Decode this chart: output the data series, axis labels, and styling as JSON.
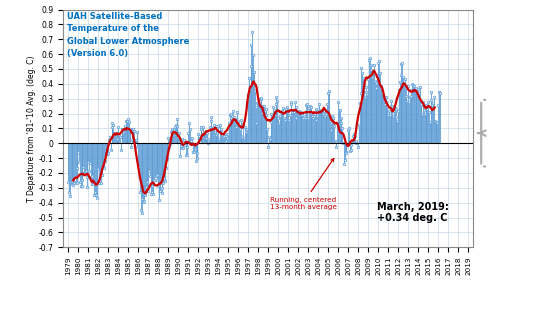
{
  "title_text": "UAH Satellite-Based\nTemperature of the\nGlobal Lower Atmosphere\n(Version 6.0)",
  "ylabel": "T Departure from '81-'10 Avg. (deg. C)",
  "ylim": [
    -0.7,
    0.9
  ],
  "yticks": [
    -0.7,
    -0.6,
    -0.5,
    -0.4,
    -0.3,
    -0.2,
    -0.1,
    0.0,
    0.1,
    0.2,
    0.3,
    0.4,
    0.5,
    0.6,
    0.7,
    0.8,
    0.9
  ],
  "annotation_text": "Running, centered\n13-month average",
  "march2019_text": "March, 2019:\n+0.34 deg. C",
  "line_color": "#cc0000",
  "bar_color": "#5b9bd5",
  "background_color": "#ffffff",
  "monthly_data": [
    -0.259,
    -0.325,
    -0.353,
    -0.264,
    -0.251,
    -0.274,
    -0.284,
    -0.267,
    -0.218,
    -0.261,
    -0.268,
    -0.168,
    -0.056,
    -0.128,
    -0.259,
    -0.289,
    -0.289,
    -0.246,
    -0.159,
    -0.199,
    -0.2,
    -0.189,
    -0.229,
    -0.293,
    -0.127,
    -0.189,
    -0.133,
    -0.228,
    -0.22,
    -0.276,
    -0.273,
    -0.346,
    -0.328,
    -0.349,
    -0.368,
    -0.263,
    -0.175,
    -0.267,
    -0.256,
    -0.268,
    -0.216,
    -0.166,
    -0.147,
    -0.166,
    -0.121,
    -0.054,
    -0.072,
    -0.023,
    -0.063,
    0.023,
    0.044,
    -0.044,
    0.137,
    0.108,
    0.12,
    0.068,
    0.056,
    0.036,
    0.026,
    0.07,
    0.107,
    0.057,
    0.042,
    -0.046,
    0.097,
    0.095,
    0.075,
    0.093,
    0.118,
    0.147,
    0.094,
    0.151,
    0.162,
    0.143,
    0.082,
    -0.022,
    0.093,
    0.023,
    0.099,
    0.082,
    0.019,
    0.023,
    -0.024,
    0.076,
    -0.133,
    -0.16,
    -0.327,
    -0.452,
    -0.469,
    -0.374,
    -0.395,
    -0.387,
    -0.351,
    -0.296,
    -0.312,
    -0.261,
    -0.32,
    -0.185,
    -0.223,
    -0.344,
    -0.33,
    -0.29,
    -0.34,
    -0.244,
    -0.218,
    -0.219,
    -0.215,
    -0.248,
    -0.285,
    -0.38,
    -0.319,
    -0.266,
    -0.338,
    -0.302,
    -0.265,
    -0.237,
    -0.256,
    -0.167,
    -0.098,
    -0.107,
    0.038,
    -0.025,
    -0.008,
    0.074,
    0.097,
    0.08,
    0.066,
    0.091,
    0.111,
    0.123,
    0.163,
    0.116,
    0.042,
    0.068,
    -0.088,
    -0.016,
    0.027,
    -0.032,
    -0.031,
    0.02,
    -0.013,
    -0.076,
    -0.077,
    -0.027,
    0.068,
    0.135,
    0.095,
    0.014,
    0.033,
    -0.002,
    -0.059,
    -0.059,
    -0.04,
    -0.12,
    -0.1,
    -0.069,
    0.065,
    0.048,
    0.007,
    0.112,
    0.097,
    0.041,
    0.107,
    0.071,
    0.065,
    0.033,
    0.081,
    0.07,
    0.003,
    0.029,
    0.109,
    0.179,
    0.151,
    0.1,
    0.097,
    0.123,
    0.076,
    0.119,
    0.058,
    0.069,
    0.113,
    0.028,
    0.125,
    0.097,
    0.075,
    0.039,
    0.042,
    0.046,
    0.062,
    0.046,
    0.017,
    0.033,
    0.062,
    0.133,
    0.189,
    0.196,
    0.167,
    0.142,
    0.214,
    0.174,
    0.162,
    0.108,
    0.135,
    0.211,
    0.153,
    0.114,
    0.099,
    0.157,
    0.049,
    0.042,
    0.128,
    0.038,
    0.111,
    0.086,
    0.075,
    0.094,
    0.299,
    0.44,
    0.362,
    0.517,
    0.66,
    0.747,
    0.597,
    0.482,
    0.354,
    0.246,
    0.138,
    0.268,
    0.273,
    0.298,
    0.249,
    0.295,
    0.303,
    0.204,
    0.249,
    0.254,
    0.218,
    0.232,
    0.191,
    0.094,
    -0.023,
    0.04,
    0.028,
    0.143,
    0.197,
    0.177,
    0.247,
    0.226,
    0.189,
    0.262,
    0.313,
    0.282,
    0.168,
    0.138,
    0.186,
    0.208,
    0.212,
    0.215,
    0.239,
    0.167,
    0.158,
    0.217,
    0.229,
    0.241,
    0.222,
    0.157,
    0.187,
    0.276,
    0.263,
    0.21,
    0.222,
    0.213,
    0.275,
    0.17,
    0.246,
    0.218,
    0.207,
    0.214,
    0.21,
    0.2,
    0.188,
    0.19,
    0.168,
    0.183,
    0.168,
    0.212,
    0.256,
    0.266,
    0.171,
    0.239,
    0.248,
    0.204,
    0.242,
    0.183,
    0.17,
    0.183,
    0.194,
    0.158,
    0.232,
    0.183,
    0.217,
    0.261,
    0.223,
    0.219,
    0.214,
    0.222,
    0.198,
    0.218,
    0.18,
    0.196,
    0.223,
    0.266,
    0.337,
    0.351,
    0.153,
    0.091,
    0.135,
    0.183,
    0.172,
    0.116,
    0.018,
    -0.022,
    0.011,
    0.138,
    0.28,
    0.224,
    0.222,
    0.169,
    0.138,
    0.103,
    -0.001,
    -0.14,
    -0.111,
    -0.062,
    -0.066,
    -0.013,
    0.092,
    0.1,
    -0.054,
    -0.046,
    -0.012,
    0.021,
    0.046,
    0.061,
    0.048,
    0.005,
    0.018,
    0.002,
    -0.026,
    0.126,
    0.272,
    0.339,
    0.509,
    0.473,
    0.436,
    0.396,
    0.312,
    0.347,
    0.38,
    0.332,
    0.433,
    0.558,
    0.573,
    0.49,
    0.525,
    0.449,
    0.478,
    0.529,
    0.418,
    0.408,
    0.37,
    0.458,
    0.541,
    0.556,
    0.475,
    0.386,
    0.369,
    0.337,
    0.325,
    0.286,
    0.262,
    0.277,
    0.311,
    0.247,
    0.188,
    0.215,
    0.187,
    0.286,
    0.254,
    0.251,
    0.182,
    0.218,
    0.235,
    0.233,
    0.179,
    0.147,
    0.219,
    0.359,
    0.415,
    0.462,
    0.534,
    0.541,
    0.445,
    0.407,
    0.432,
    0.373,
    0.321,
    0.285,
    0.386,
    0.277,
    0.313,
    0.321,
    0.358,
    0.396,
    0.394,
    0.383,
    0.349,
    0.374,
    0.349,
    0.34,
    0.368,
    0.34,
    0.376,
    0.258,
    0.267,
    0.197,
    0.275,
    0.222,
    0.199,
    0.247,
    0.258,
    0.23,
    0.276,
    0.209,
    0.143,
    0.294,
    0.343,
    0.256,
    0.274,
    0.311,
    0.149,
    0.136,
    0.145,
    0.138,
    0.255,
    0.345,
    0.34
  ]
}
